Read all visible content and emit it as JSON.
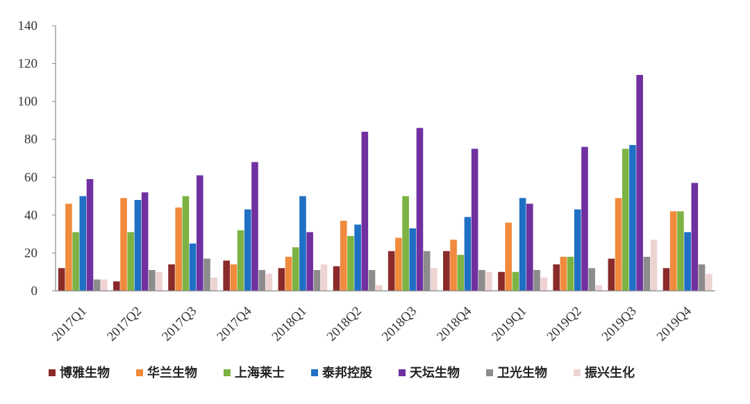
{
  "chart_data": {
    "type": "bar",
    "categories": [
      "2017Q1",
      "2017Q2",
      "2017Q3",
      "2017Q4",
      "2018Q1",
      "2018Q2",
      "2018Q3",
      "2018Q4",
      "2019Q1",
      "2019Q2",
      "2019Q3",
      "2019Q4"
    ],
    "series": [
      {
        "name": "博雅生物",
        "color": "#8b2a2a",
        "values": [
          12,
          5,
          14,
          16,
          12,
          13,
          21,
          21,
          10,
          14,
          17,
          12
        ]
      },
      {
        "name": "华兰生物",
        "color": "#f08a3c",
        "values": [
          46,
          49,
          44,
          14,
          18,
          37,
          28,
          27,
          36,
          18,
          49,
          42
        ]
      },
      {
        "name": "上海莱士",
        "color": "#7cb342",
        "values": [
          31,
          31,
          50,
          32,
          23,
          29,
          50,
          19,
          10,
          18,
          75,
          42
        ]
      },
      {
        "name": "泰邦控股",
        "color": "#1f6fc5",
        "values": [
          50,
          48,
          25,
          43,
          50,
          35,
          33,
          39,
          49,
          43,
          77,
          31
        ]
      },
      {
        "name": "天坛生物",
        "color": "#7030a0",
        "values": [
          59,
          52,
          61,
          68,
          31,
          84,
          86,
          75,
          46,
          76,
          114,
          57
        ]
      },
      {
        "name": "卫光生物",
        "color": "#8c8c8c",
        "values": [
          6,
          11,
          17,
          11,
          11,
          11,
          21,
          11,
          11,
          12,
          18,
          14
        ]
      },
      {
        "name": "振兴生化",
        "color": "#eed3d3",
        "values": [
          6,
          10,
          7,
          9,
          14,
          3,
          12,
          10,
          7,
          3,
          27,
          9
        ]
      }
    ],
    "ylim": [
      0,
      140
    ],
    "yticks": [
      "0",
      "20",
      "40",
      "60",
      "80",
      "100",
      "120",
      "140"
    ],
    "grid": false,
    "legend_position": "bottom",
    "title": "",
    "xlabel": "",
    "ylabel": ""
  }
}
